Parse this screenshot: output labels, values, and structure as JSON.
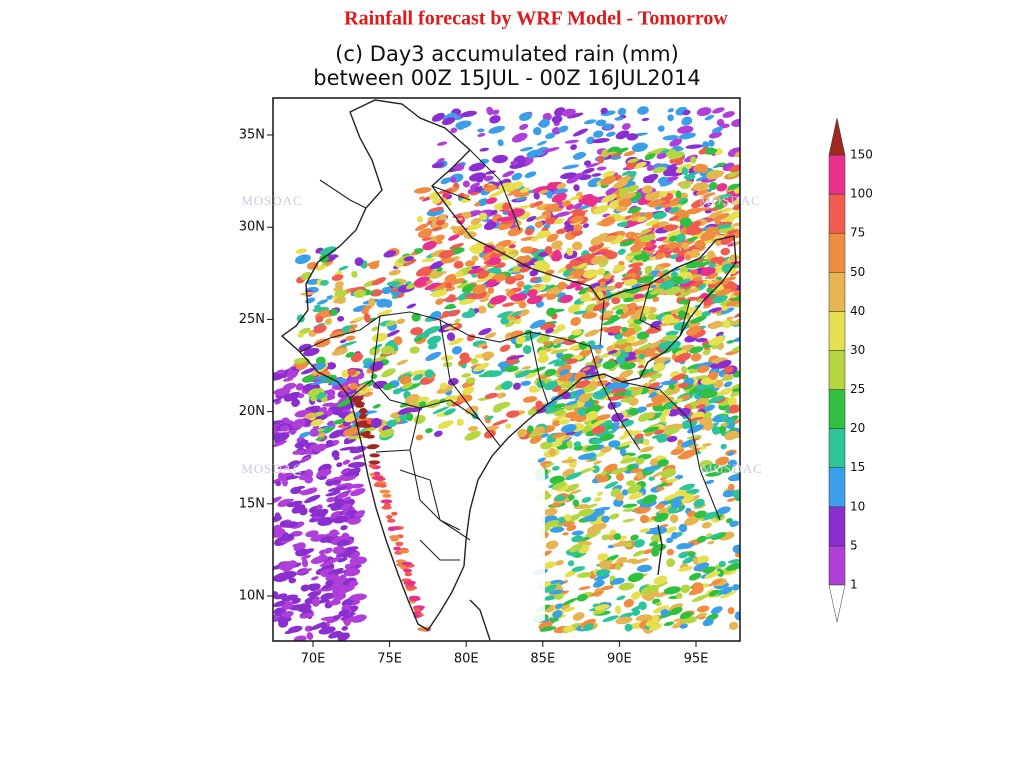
{
  "header": {
    "title": "Rainfall forecast by WRF Model - Tomorrow"
  },
  "map": {
    "title_lines": [
      "(c) Day3 accumulated rain (mm)",
      "between 00Z 15JUL - 00Z 16JUL2014"
    ],
    "lat_labels": [
      "35N",
      "30N",
      "25N",
      "20N",
      "15N",
      "10N"
    ],
    "lon_labels": [
      "70E",
      "75E",
      "80E",
      "85E",
      "90E",
      "95E"
    ],
    "watermark": "MOSDAC"
  },
  "colorbar": {
    "levels": [
      1,
      5,
      10,
      15,
      20,
      25,
      30,
      40,
      50,
      75,
      100,
      150
    ],
    "colors": [
      "#b03ed8",
      "#8a2ed0",
      "#3a9ee8",
      "#2ec49a",
      "#30c040",
      "#b4d640",
      "#e6e050",
      "#e6b450",
      "#f08c40",
      "#f05c50",
      "#e8308e"
    ],
    "over_color": "#a0281e"
  }
}
